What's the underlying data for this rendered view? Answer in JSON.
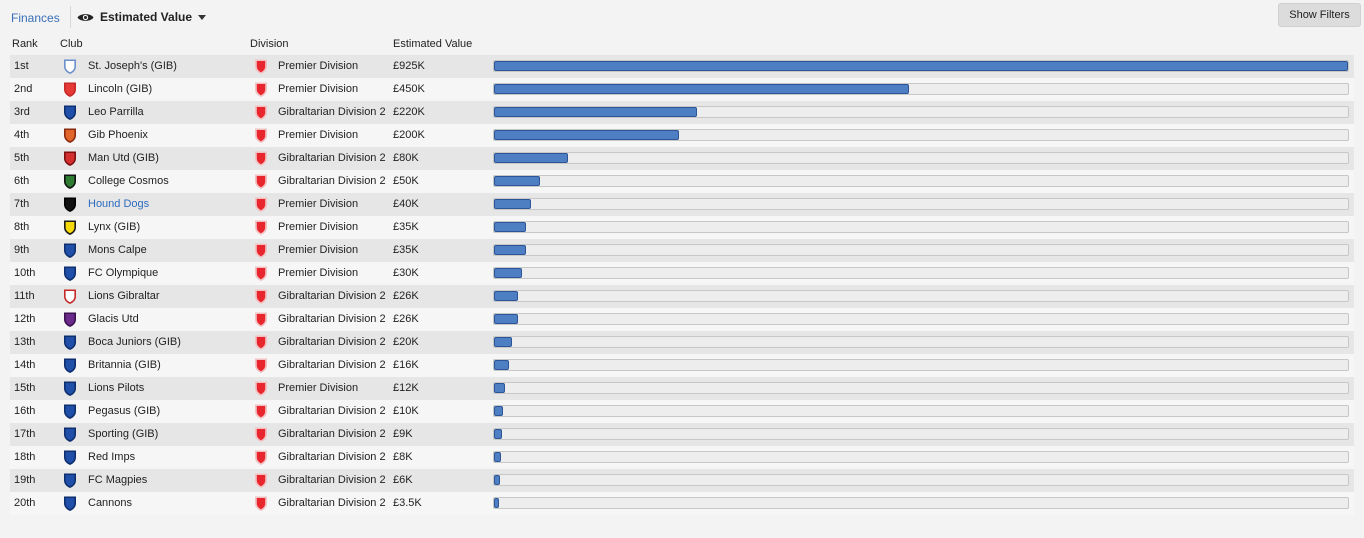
{
  "toolbar": {
    "breadcrumb": "Finances",
    "view_label": "Estimated Value",
    "show_filters": "Show Filters"
  },
  "columns": {
    "rank": "Rank",
    "club": "Club",
    "division": "Division",
    "value": "Estimated Value"
  },
  "colors": {
    "bar_fill": "#4d7fc2",
    "link": "#3a6fb7",
    "division_icon": "#e8262d"
  },
  "max_value_k": 925,
  "rows": [
    {
      "rank": "1st",
      "club": "St. Joseph's (GIB)",
      "division": "Premier Division",
      "value": "£925K",
      "value_k": 925,
      "crest": "st-josephs-crest-icon",
      "crest_color": "#ffffff",
      "crest_border": "#6a8fc9",
      "link": false
    },
    {
      "rank": "2nd",
      "club": "Lincoln (GIB)",
      "division": "Premier Division",
      "value": "£450K",
      "value_k": 450,
      "crest": "lincoln-crest-icon",
      "crest_color": "#e53935",
      "crest_border": "#c62828",
      "link": false
    },
    {
      "rank": "3rd",
      "club": "Leo Parrilla",
      "division": "Gibraltarian Division 2",
      "value": "£220K",
      "value_k": 220,
      "crest": "shield-icon",
      "crest_color": "#1f4fa8",
      "crest_border": "#0e2f6d",
      "link": false
    },
    {
      "rank": "4th",
      "club": "Gib Phoenix",
      "division": "Premier Division",
      "value": "£200K",
      "value_k": 200,
      "crest": "gib-phoenix-crest-icon",
      "crest_color": "#e0662c",
      "crest_border": "#8a2a10",
      "link": false
    },
    {
      "rank": "5th",
      "club": "Man Utd (GIB)",
      "division": "Gibraltarian Division 2",
      "value": "£80K",
      "value_k": 80,
      "crest": "man-utd-crest-icon",
      "crest_color": "#d32f2f",
      "crest_border": "#7a1010",
      "link": false
    },
    {
      "rank": "6th",
      "club": "College Cosmos",
      "division": "Gibraltarian Division 2",
      "value": "£50K",
      "value_k": 50,
      "crest": "college-cosmos-crest-icon",
      "crest_color": "#2e7d32",
      "crest_border": "#111111",
      "link": false
    },
    {
      "rank": "7th",
      "club": "Hound Dogs",
      "division": "Premier Division",
      "value": "£40K",
      "value_k": 40,
      "crest": "hound-dogs-crest-icon",
      "crest_color": "#111111",
      "crest_border": "#000000",
      "link": true
    },
    {
      "rank": "8th",
      "club": "Lynx (GIB)",
      "division": "Premier Division",
      "value": "£35K",
      "value_k": 35,
      "crest": "lynx-crest-icon",
      "crest_color": "#f5d90a",
      "crest_border": "#1a1a1a",
      "link": false
    },
    {
      "rank": "9th",
      "club": "Mons Calpe",
      "division": "Premier Division",
      "value": "£35K",
      "value_k": 35,
      "crest": "shield-icon",
      "crest_color": "#1f4fa8",
      "crest_border": "#0e2f6d",
      "link": false
    },
    {
      "rank": "10th",
      "club": "FC Olympique",
      "division": "Premier Division",
      "value": "£30K",
      "value_k": 30,
      "crest": "shield-icon",
      "crest_color": "#1f4fa8",
      "crest_border": "#0e2f6d",
      "link": false
    },
    {
      "rank": "11th",
      "club": "Lions Gibraltar",
      "division": "Gibraltarian Division 2",
      "value": "£26K",
      "value_k": 26,
      "crest": "lions-gibraltar-crest-icon",
      "crest_color": "#ffffff",
      "crest_border": "#c62828",
      "link": false
    },
    {
      "rank": "12th",
      "club": "Glacis Utd",
      "division": "Gibraltarian Division 2",
      "value": "£26K",
      "value_k": 26,
      "crest": "glacis-utd-crest-icon",
      "crest_color": "#6a2a8a",
      "crest_border": "#3b1050",
      "link": false
    },
    {
      "rank": "13th",
      "club": "Boca Juniors (GIB)",
      "division": "Gibraltarian Division 2",
      "value": "£20K",
      "value_k": 20,
      "crest": "shield-icon",
      "crest_color": "#1f4fa8",
      "crest_border": "#0e2f6d",
      "link": false
    },
    {
      "rank": "14th",
      "club": "Britannia (GIB)",
      "division": "Gibraltarian Division 2",
      "value": "£16K",
      "value_k": 16,
      "crest": "shield-icon",
      "crest_color": "#1f4fa8",
      "crest_border": "#0e2f6d",
      "link": false
    },
    {
      "rank": "15th",
      "club": "Lions Pilots",
      "division": "Premier Division",
      "value": "£12K",
      "value_k": 12,
      "crest": "shield-icon",
      "crest_color": "#1f4fa8",
      "crest_border": "#0e2f6d",
      "link": false
    },
    {
      "rank": "16th",
      "club": "Pegasus (GIB)",
      "division": "Gibraltarian Division 2",
      "value": "£10K",
      "value_k": 10,
      "crest": "shield-icon",
      "crest_color": "#1f4fa8",
      "crest_border": "#0e2f6d",
      "link": false
    },
    {
      "rank": "17th",
      "club": "Sporting (GIB)",
      "division": "Gibraltarian Division 2",
      "value": "£9K",
      "value_k": 9,
      "crest": "shield-icon",
      "crest_color": "#1f4fa8",
      "crest_border": "#0e2f6d",
      "link": false
    },
    {
      "rank": "18th",
      "club": "Red Imps",
      "division": "Gibraltarian Division 2",
      "value": "£8K",
      "value_k": 8,
      "crest": "shield-icon",
      "crest_color": "#1f4fa8",
      "crest_border": "#0e2f6d",
      "link": false
    },
    {
      "rank": "19th",
      "club": "FC Magpies",
      "division": "Gibraltarian Division 2",
      "value": "£6K",
      "value_k": 6,
      "crest": "shield-icon",
      "crest_color": "#1f4fa8",
      "crest_border": "#0e2f6d",
      "link": false
    },
    {
      "rank": "20th",
      "club": "Cannons",
      "division": "Gibraltarian Division 2",
      "value": "£3.5K",
      "value_k": 3.5,
      "crest": "shield-icon",
      "crest_color": "#1f4fa8",
      "crest_border": "#0e2f6d",
      "link": false
    }
  ]
}
